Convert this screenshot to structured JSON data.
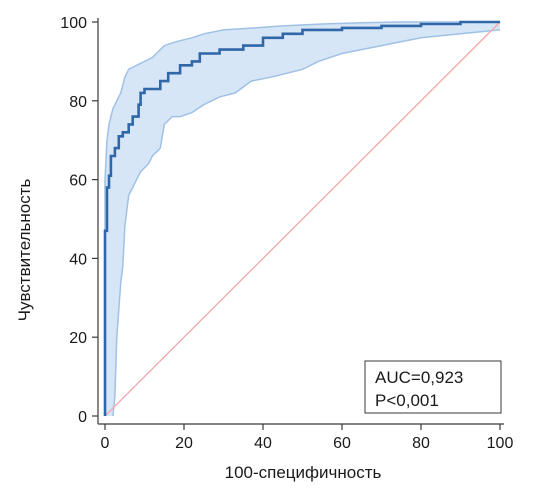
{
  "chart_data": {
    "type": "line",
    "xlabel": "100-специфичность",
    "ylabel": "Чувствительность",
    "xlim": [
      0,
      100
    ],
    "ylim": [
      0,
      100
    ],
    "x_ticks": [
      "0",
      "20",
      "40",
      "60",
      "80",
      "100"
    ],
    "y_ticks": [
      "0",
      "20",
      "40",
      "60",
      "80",
      "100"
    ],
    "grid": false,
    "annotation": {
      "auc": "AUC=0,923",
      "p": "P<0,001"
    },
    "colors": {
      "roc": "#2f67a8",
      "ci_fill": "#d7e6f6",
      "ci_line": "#9fc1e6",
      "diagonal": "#f0a8a8",
      "axis": "#3a3a3a"
    },
    "series": [
      {
        "role": "roc-curve",
        "x": [
          0,
          0,
          0.5,
          0.5,
          1,
          1,
          1.5,
          1.5,
          2.5,
          2.5,
          3.5,
          3.5,
          4.5,
          4.5,
          6,
          6,
          7,
          7,
          8.5,
          8.5,
          9,
          9,
          10,
          10,
          14,
          14,
          16,
          16,
          19,
          19,
          22,
          22,
          24,
          24,
          29,
          29,
          35,
          35,
          40,
          40,
          45,
          45,
          50,
          50,
          60,
          60,
          70,
          70,
          80,
          80,
          90,
          90,
          100
        ],
        "y": [
          0,
          47,
          47,
          58,
          58,
          61,
          61,
          66,
          66,
          68,
          68,
          71,
          71,
          72,
          72,
          74,
          74,
          76,
          76,
          79,
          79,
          82,
          82,
          83,
          83,
          85,
          85,
          87,
          87,
          89,
          89,
          90,
          90,
          92,
          92,
          93,
          93,
          94,
          94,
          96,
          96,
          97,
          97,
          98,
          98,
          98.5,
          98.5,
          99,
          99,
          99.5,
          99.5,
          100,
          100
        ]
      },
      {
        "role": "ci-upper",
        "x": [
          0,
          0,
          0.5,
          1,
          2,
          3,
          4,
          5,
          6,
          8,
          10,
          12,
          15,
          18,
          22,
          25,
          30,
          38,
          45,
          55,
          65,
          75,
          85,
          100
        ],
        "y": [
          0,
          60,
          70,
          74,
          78,
          80,
          82,
          86,
          88,
          89,
          90,
          91,
          94,
          95,
          96,
          97,
          98,
          98.5,
          99,
          99.5,
          99.8,
          100,
          100,
          100
        ]
      },
      {
        "role": "ci-lower",
        "x": [
          2,
          2.5,
          3,
          4,
          4.5,
          5,
          5.5,
          6,
          7,
          8,
          9,
          11,
          12,
          14,
          15,
          17,
          19,
          22,
          25,
          29,
          33,
          37,
          42,
          50,
          54,
          60,
          70,
          80,
          90,
          100
        ],
        "y": [
          0,
          5,
          20,
          34,
          38,
          48,
          52,
          56,
          58,
          60,
          62,
          64,
          66,
          68,
          74,
          76,
          76,
          77,
          79,
          81,
          82,
          85,
          86,
          88,
          90,
          92,
          94,
          96,
          97,
          98
        ]
      },
      {
        "role": "reference-diagonal",
        "x": [
          0,
          100
        ],
        "y": [
          0,
          100
        ]
      }
    ]
  }
}
